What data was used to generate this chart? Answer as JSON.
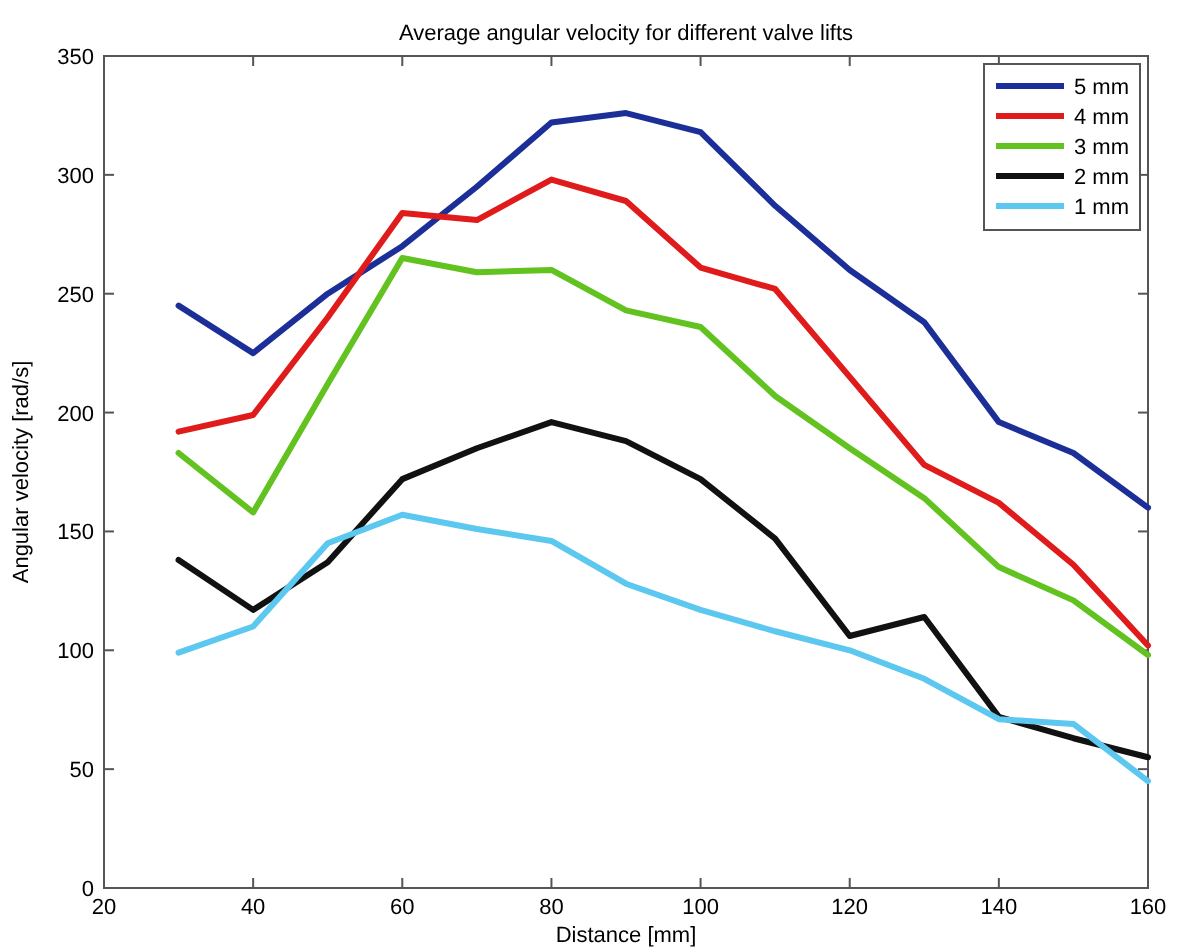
{
  "chart_data": {
    "type": "line",
    "title": "Average angular velocity for different valve lifts",
    "xlabel": "Distance [mm]",
    "ylabel": "Angular velocity [rad/s]",
    "x": [
      30,
      40,
      50,
      60,
      70,
      80,
      90,
      100,
      110,
      120,
      130,
      140,
      150,
      160
    ],
    "series": [
      {
        "name": "5 mm",
        "color": "#1c2f98",
        "values": [
          245,
          225,
          250,
          270,
          295,
          322,
          326,
          318,
          287,
          260,
          238,
          196,
          183,
          160
        ]
      },
      {
        "name": "4 mm",
        "color": "#e01b1b",
        "values": [
          192,
          199,
          240,
          284,
          281,
          298,
          289,
          261,
          252,
          215,
          178,
          162,
          136,
          102
        ]
      },
      {
        "name": "3 mm",
        "color": "#62c21f",
        "values": [
          183,
          158,
          212,
          265,
          259,
          260,
          243,
          236,
          207,
          185,
          164,
          135,
          121,
          98
        ]
      },
      {
        "name": "2 mm",
        "color": "#111111",
        "values": [
          138,
          117,
          137,
          172,
          185,
          196,
          188,
          172,
          147,
          106,
          114,
          72,
          63,
          55
        ]
      },
      {
        "name": "1 mm",
        "color": "#5cc8ef",
        "values": [
          99,
          110,
          145,
          157,
          151,
          146,
          128,
          117,
          108,
          100,
          88,
          71,
          69,
          45
        ]
      }
    ],
    "xlim": [
      20,
      160
    ],
    "xticks": [
      20,
      40,
      60,
      80,
      100,
      120,
      140,
      160
    ],
    "ylim": [
      0,
      350
    ],
    "yticks": [
      0,
      50,
      100,
      150,
      200,
      250,
      300,
      350
    ],
    "grid": false,
    "legend": "top right",
    "marker": "none",
    "line_style": "solid"
  }
}
